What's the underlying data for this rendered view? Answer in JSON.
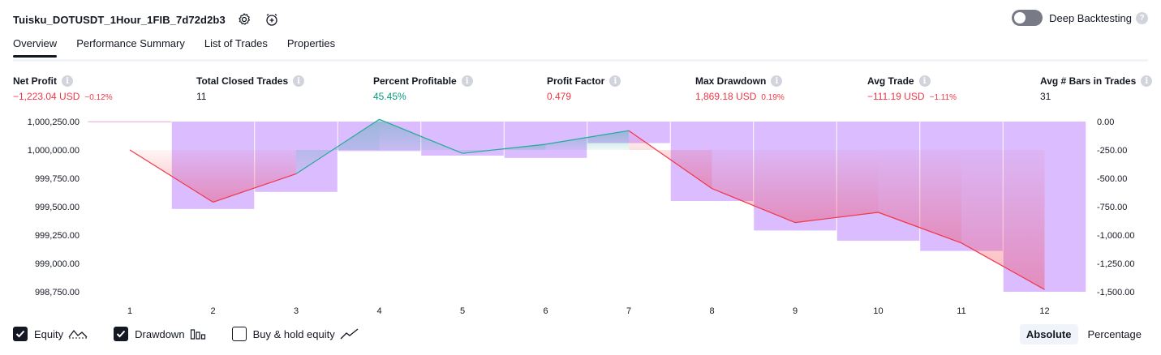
{
  "header": {
    "strategy_name": "Tuisku_DOTUSDT_1Hour_1FIB_7d72d2b3",
    "settings_icon": "gear-icon",
    "alert_icon": "alarm-add-icon"
  },
  "deep_backtesting": {
    "label": "Deep Backtesting",
    "enabled": false,
    "help": "?"
  },
  "tabs": [
    {
      "label": "Overview",
      "active": true
    },
    {
      "label": "Performance Summary",
      "active": false
    },
    {
      "label": "List of Trades",
      "active": false
    },
    {
      "label": "Properties",
      "active": false
    }
  ],
  "metrics": [
    {
      "label": "Net Profit",
      "value": "−1,223.04 USD",
      "sub": "−0.12%",
      "color": "#f23645"
    },
    {
      "label": "Total Closed Trades",
      "value": "11",
      "sub": "",
      "color": "#131722"
    },
    {
      "label": "Percent Profitable",
      "value": "45.45%",
      "sub": "",
      "color": "#089981"
    },
    {
      "label": "Profit Factor",
      "value": "0.479",
      "sub": "",
      "color": "#f23645"
    },
    {
      "label": "Max Drawdown",
      "value": "1,869.18 USD",
      "sub": "0.19%",
      "color": "#f23645"
    },
    {
      "label": "Avg Trade",
      "value": "−111.19 USD",
      "sub": "−1.11%",
      "color": "#f23645"
    },
    {
      "label": "Avg # Bars in Trades",
      "value": "31",
      "sub": "",
      "color": "#131722"
    }
  ],
  "chart_data": {
    "type": "line",
    "x": [
      1,
      2,
      3,
      4,
      5,
      6,
      7,
      8,
      9,
      10,
      11,
      12
    ],
    "left_axis": {
      "ticks": [
        "1,000,250.00",
        "1,000,000.00",
        "999,750.00",
        "999,500.00",
        "999,250.00",
        "999,000.00",
        "998,750.00"
      ],
      "tick_values": [
        1000250,
        1000000,
        999750,
        999500,
        999250,
        999000,
        998750
      ]
    },
    "right_axis": {
      "ticks": [
        "0.00",
        "-250.00",
        "-500.00",
        "-750.00",
        "-1,000.00",
        "-1,250.00",
        "-1,500.00"
      ],
      "tick_values": [
        0,
        -250,
        -500,
        -750,
        -1000,
        -1250,
        -1500
      ]
    },
    "series": [
      {
        "name": "Equity",
        "axis": "left",
        "values": [
          1000000,
          999540,
          999790,
          1000270,
          999970,
          1000050,
          1000170,
          999660,
          999360,
          999450,
          999180,
          998770
        ]
      },
      {
        "name": "Drawdown",
        "axis": "right",
        "values": [
          0,
          -770,
          -620,
          -260,
          -300,
          -320,
          -190,
          -700,
          -960,
          -1050,
          -1140,
          -1500
        ]
      }
    ],
    "colors": {
      "equity_up": "#22ab94",
      "equity_down": "#f23645",
      "drawdown_bar": "#cfa6ff",
      "grid": "#ffffff"
    }
  },
  "legend": [
    {
      "label": "Equity",
      "checked": true,
      "icon": "equity-line-icon"
    },
    {
      "label": "Drawdown",
      "checked": true,
      "icon": "bar-chart-icon"
    },
    {
      "label": "Buy & hold equity",
      "checked": false,
      "icon": "trend-line-icon"
    }
  ],
  "view_mode": {
    "options": [
      "Absolute",
      "Percentage"
    ],
    "selected": "Absolute"
  }
}
